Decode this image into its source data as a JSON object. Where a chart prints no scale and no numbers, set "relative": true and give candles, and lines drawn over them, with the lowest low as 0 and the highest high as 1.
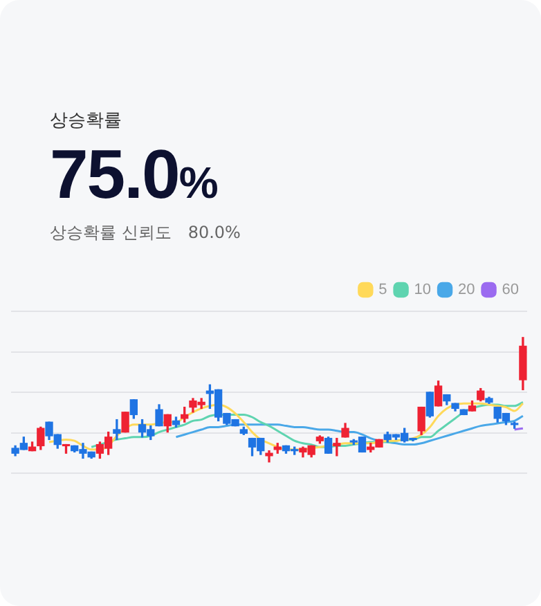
{
  "chart_data": {
    "type": "candlestick",
    "relative": true,
    "grid": "y",
    "legend": "top right",
    "tick_labels": false,
    "annotations": [
      "상승확률",
      "75.0%",
      "상승확률 신뢰도",
      "80.0%"
    ],
    "categories": [
      null,
      null,
      null,
      null,
      null,
      null,
      null,
      null,
      null,
      null,
      null,
      null,
      null,
      null,
      null,
      null,
      null,
      null,
      null,
      null,
      null,
      null,
      null,
      null,
      null,
      null,
      null,
      null,
      null,
      null,
      null,
      null,
      null,
      null,
      null,
      null,
      null,
      null,
      null,
      null,
      null,
      null,
      null,
      null,
      null,
      null,
      null,
      null,
      null,
      null,
      null,
      null,
      null,
      null,
      null,
      null,
      null,
      null,
      null,
      null,
      null
    ],
    "ohlc": [
      [
        0.11,
        0.13,
        0.05,
        0.07
      ],
      [
        0.15,
        0.2,
        0.1,
        0.1
      ],
      [
        0.09,
        0.16,
        0.09,
        0.12
      ],
      [
        0.13,
        0.28,
        0.1,
        0.27
      ],
      [
        0.32,
        0.32,
        0.18,
        0.21
      ],
      [
        0.22,
        0.22,
        0.11,
        0.14
      ],
      [
        0.13,
        0.14,
        0.07,
        0.14
      ],
      [
        0.13,
        0.13,
        0.08,
        0.09
      ],
      [
        0.1,
        0.15,
        0.03,
        0.07
      ],
      [
        0.08,
        0.08,
        0.03,
        0.04
      ],
      [
        0.07,
        0.16,
        0.03,
        0.14
      ],
      [
        0.11,
        0.24,
        0.06,
        0.2
      ],
      [
        0.26,
        0.34,
        0.18,
        0.23
      ],
      [
        0.24,
        0.4,
        0.24,
        0.4
      ],
      [
        0.5,
        0.5,
        0.35,
        0.38
      ],
      [
        0.3,
        0.34,
        0.2,
        0.24
      ],
      [
        0.26,
        0.29,
        0.18,
        0.21
      ],
      [
        0.42,
        0.46,
        0.29,
        0.29
      ],
      [
        0.29,
        0.38,
        0.24,
        0.38
      ],
      [
        0.33,
        0.36,
        0.28,
        0.3
      ],
      [
        0.35,
        0.44,
        0.32,
        0.38
      ],
      [
        0.44,
        0.51,
        0.4,
        0.49
      ],
      [
        0.46,
        0.51,
        0.43,
        0.48
      ],
      [
        0.57,
        0.62,
        0.43,
        0.55
      ],
      [
        0.58,
        0.58,
        0.33,
        0.36
      ],
      [
        0.39,
        0.39,
        0.3,
        0.31
      ],
      [
        0.34,
        0.34,
        0.29,
        0.29
      ],
      [
        0.26,
        0.28,
        0.22,
        0.23
      ],
      [
        0.19,
        0.19,
        0.05,
        0.12
      ],
      [
        0.19,
        0.19,
        0.06,
        0.09
      ],
      [
        0.05,
        0.09,
        0,
        0.07
      ],
      [
        0.1,
        0.15,
        0.07,
        0.12
      ],
      [
        0.13,
        0.13,
        0.07,
        0.09
      ],
      [
        0.1,
        0.12,
        0.06,
        0.09
      ],
      [
        0.08,
        0.12,
        0.04,
        0.11
      ],
      [
        0.06,
        0.13,
        0.04,
        0.13
      ],
      [
        0.17,
        0.21,
        0.15,
        0.2
      ],
      [
        0.19,
        0.2,
        0.07,
        0.07
      ],
      [
        0.13,
        0.19,
        0.05,
        0.15
      ],
      [
        0.2,
        0.31,
        0.2,
        0.27
      ],
      [
        0.17,
        0.18,
        0.14,
        0.16
      ],
      [
        0.2,
        0.2,
        0.08,
        0.08
      ],
      [
        0.1,
        0.15,
        0.08,
        0.12
      ],
      [
        0.12,
        0.18,
        0.12,
        0.18
      ],
      [
        0.22,
        0.24,
        0.16,
        0.18
      ],
      [
        0.22,
        0.22,
        0.18,
        0.2
      ],
      [
        0.23,
        0.27,
        0.16,
        0.17
      ],
      [
        0.19,
        0.19,
        0.17,
        0.18
      ],
      [
        0.25,
        0.44,
        0.22,
        0.44
      ],
      [
        0.56,
        0.56,
        0.36,
        0.37
      ],
      [
        0.45,
        0.65,
        0.45,
        0.61
      ],
      [
        0.54,
        0.54,
        0.46,
        0.49
      ],
      [
        0.47,
        0.47,
        0.41,
        0.43
      ],
      [
        0.42,
        0.42,
        0.38,
        0.38
      ],
      [
        0.41,
        0.49,
        0.41,
        0.45
      ],
      [
        0.5,
        0.59,
        0.49,
        0.57
      ],
      [
        0.51,
        0.52,
        0.47,
        0.48
      ],
      [
        0.44,
        0.44,
        0.32,
        0.35
      ],
      [
        0.39,
        0.39,
        0.3,
        0.33
      ],
      [
        0.31,
        0.32,
        0.27,
        0.3
      ],
      [
        0.66,
        1,
        0.58,
        0.93
      ]
    ],
    "colors": [
      "#1f74e3",
      "#1f74e3",
      "#ee2233",
      "#ee2233",
      "#1f74e3",
      "#1f74e3",
      "#ee2233",
      "#1f74e3",
      "#1f74e3",
      "#1f74e3",
      "#ee2233",
      "#ee2233",
      "#1f74e3",
      "#ee2233",
      "#1f74e3",
      "#1f74e3",
      "#1f74e3",
      "#1f74e3",
      "#ee2233",
      "#1f74e3",
      "#ee2233",
      "#ee2233",
      "#ee2233",
      "#1f74e3",
      "#1f74e3",
      "#1f74e3",
      "#1f74e3",
      "#1f74e3",
      "#1f74e3",
      "#1f74e3",
      "#ee2233",
      "#ee2233",
      "#1f74e3",
      "#1f74e3",
      "#ee2233",
      "#ee2233",
      "#ee2233",
      "#1f74e3",
      "#ee2233",
      "#ee2233",
      "#1f74e3",
      "#1f74e3",
      "#ee2233",
      "#ee2233",
      "#1f74e3",
      "#1f74e3",
      "#1f74e3",
      "#1f74e3",
      "#ee2233",
      "#1f74e3",
      "#ee2233",
      "#1f74e3",
      "#1f74e3",
      "#1f74e3",
      "#ee2233",
      "#ee2233",
      "#1f74e3",
      "#1f74e3",
      "#1f74e3",
      "#1f74e3",
      "#ee2233"
    ],
    "series": [
      {
        "type": "line",
        "name": "5",
        "color": "#ffd95a",
        "values": [
          null,
          null,
          null,
          null,
          0.16,
          0.17,
          0.18,
          0.17,
          0.13,
          0.1,
          0.1,
          0.13,
          0.21,
          0.27,
          0.3,
          0.3,
          0.3,
          0.31,
          0.32,
          0.32,
          0.36,
          0.4,
          0.43,
          0.45,
          0.46,
          0.44,
          0.39,
          0.32,
          0.24,
          0.18,
          0.15,
          0.12,
          0.1,
          0.1,
          0.1,
          0.11,
          0.12,
          0.13,
          0.14,
          0.15,
          0.15,
          0.15,
          0.15,
          0.16,
          0.17,
          0.17,
          0.18,
          0.19,
          0.22,
          0.28,
          0.37,
          0.43,
          0.46,
          0.47,
          0.47,
          0.47,
          0.46,
          0.45,
          0.44,
          0.41,
          0.47
        ]
      },
      {
        "type": "line",
        "name": "10",
        "color": "#5fd4b0",
        "values": [
          null,
          null,
          null,
          null,
          null,
          null,
          null,
          null,
          null,
          0.12,
          0.14,
          0.16,
          0.18,
          0.19,
          0.2,
          0.2,
          0.21,
          0.24,
          0.26,
          0.28,
          0.3,
          0.33,
          0.34,
          0.37,
          0.38,
          0.38,
          0.38,
          0.38,
          0.36,
          0.32,
          0.29,
          0.25,
          0.21,
          0.17,
          0.15,
          0.14,
          0.12,
          0.12,
          0.13,
          0.13,
          0.14,
          0.15,
          0.16,
          0.16,
          0.16,
          0.17,
          0.18,
          0.18,
          0.2,
          0.2,
          0.25,
          0.3,
          0.35,
          0.4,
          0.43,
          0.45,
          0.46,
          0.46,
          0.45,
          0.45,
          0.48
        ]
      },
      {
        "type": "line",
        "name": "20",
        "color": "#4aa8e8",
        "values": [
          null,
          null,
          null,
          null,
          null,
          null,
          null,
          null,
          null,
          null,
          null,
          null,
          null,
          null,
          null,
          null,
          null,
          null,
          null,
          0.2,
          0.22,
          0.24,
          0.26,
          0.28,
          0.28,
          0.29,
          0.3,
          0.3,
          0.3,
          0.3,
          0.3,
          0.3,
          0.29,
          0.28,
          0.28,
          0.27,
          0.26,
          0.26,
          0.25,
          0.24,
          0.24,
          0.22,
          0.19,
          0.17,
          0.16,
          0.15,
          0.14,
          0.14,
          0.15,
          0.17,
          0.19,
          0.21,
          0.23,
          0.25,
          0.27,
          0.29,
          0.3,
          0.31,
          0.32,
          0.33,
          0.37
        ]
      },
      {
        "type": "line",
        "name": "60",
        "color": "#9b6bf0",
        "values": [
          null,
          null,
          null,
          null,
          null,
          null,
          null,
          null,
          null,
          null,
          null,
          null,
          null,
          null,
          null,
          null,
          null,
          null,
          null,
          null,
          null,
          null,
          null,
          null,
          null,
          null,
          null,
          null,
          null,
          null,
          null,
          null,
          null,
          null,
          null,
          null,
          null,
          null,
          null,
          null,
          null,
          null,
          null,
          null,
          null,
          null,
          null,
          null,
          null,
          null,
          null,
          null,
          null,
          null,
          null,
          null,
          null,
          null,
          null,
          0.26,
          0.27
        ]
      }
    ]
  }
}
